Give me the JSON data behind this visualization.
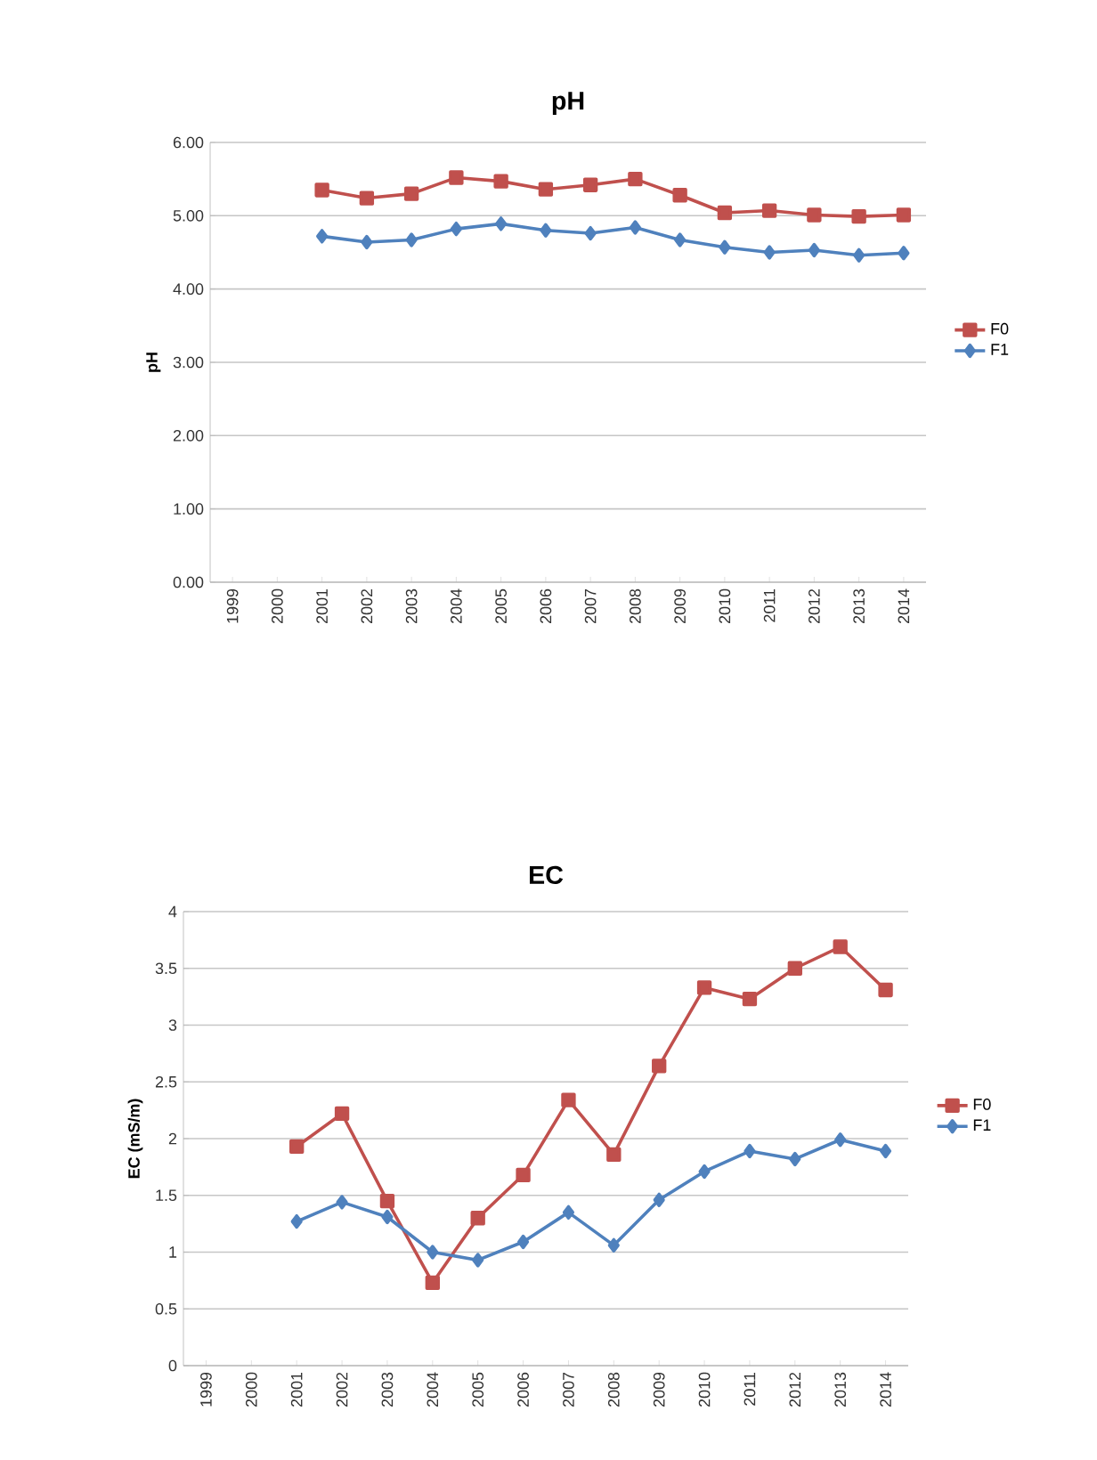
{
  "chart_data": [
    {
      "type": "line",
      "title": "pH",
      "ylabel": "pH",
      "categories": [
        "1999",
        "2000",
        "2001",
        "2002",
        "2003",
        "2004",
        "2005",
        "2006",
        "2007",
        "2008",
        "2009",
        "2010",
        "2011",
        "2012",
        "2013",
        "2014"
      ],
      "series": [
        {
          "name": "F0",
          "color": "#c0504d",
          "marker": "square",
          "values": [
            null,
            null,
            5.35,
            5.24,
            5.3,
            5.52,
            5.47,
            5.36,
            5.42,
            5.5,
            5.28,
            5.04,
            5.07,
            5.01,
            4.99,
            5.01
          ]
        },
        {
          "name": "F1",
          "color": "#4f81bd",
          "marker": "diamond",
          "values": [
            null,
            null,
            4.72,
            4.64,
            4.67,
            4.82,
            4.89,
            4.8,
            4.76,
            4.84,
            4.67,
            4.57,
            4.5,
            4.53,
            4.46,
            4.49
          ]
        }
      ],
      "ylim": [
        0,
        6
      ],
      "yticks": [
        {
          "value": 0,
          "label": "0.00"
        },
        {
          "value": 1,
          "label": "1.00"
        },
        {
          "value": 2,
          "label": "2.00"
        },
        {
          "value": 3,
          "label": "3.00"
        },
        {
          "value": 4,
          "label": "4.00"
        },
        {
          "value": 5,
          "label": "5.00"
        },
        {
          "value": 6,
          "label": "6.00"
        }
      ],
      "grid": "y",
      "legend": "right"
    },
    {
      "type": "line",
      "title": "EC",
      "ylabel": "EC (mS/m)",
      "categories": [
        "1999",
        "2000",
        "2001",
        "2002",
        "2003",
        "2004",
        "2005",
        "2006",
        "2007",
        "2008",
        "2009",
        "2010",
        "2011",
        "2012",
        "2013",
        "2014"
      ],
      "series": [
        {
          "name": "F0",
          "color": "#c0504d",
          "marker": "square",
          "values": [
            null,
            null,
            1.93,
            2.22,
            1.45,
            0.73,
            1.3,
            1.68,
            2.34,
            1.86,
            2.64,
            3.33,
            3.23,
            3.5,
            3.69,
            3.31
          ]
        },
        {
          "name": "F1",
          "color": "#4f81bd",
          "marker": "diamond",
          "values": [
            null,
            null,
            1.27,
            1.44,
            1.31,
            1.0,
            0.93,
            1.09,
            1.35,
            1.06,
            1.46,
            1.71,
            1.89,
            1.82,
            1.99,
            1.89
          ]
        }
      ],
      "ylim": [
        0,
        4
      ],
      "yticks": [
        0,
        0.5,
        1,
        1.5,
        2,
        2.5,
        3,
        3.5,
        4
      ],
      "grid": "y",
      "legend": "right"
    }
  ]
}
